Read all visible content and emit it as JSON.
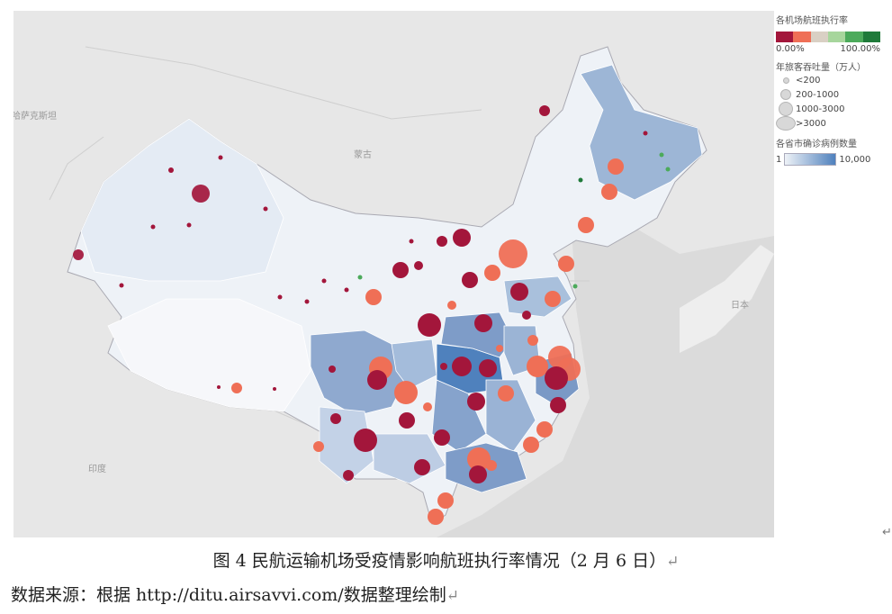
{
  "map": {
    "place_labels": [
      "蒙古",
      "哈萨克斯坦",
      "日本",
      "印度"
    ]
  },
  "legend": {
    "rate": {
      "title": "各机场航班执行率",
      "min_label": "0.00%",
      "max_label": "100.00%",
      "colors": [
        "#a3163b",
        "#ef6f56",
        "#d9d0c4",
        "#a7d69c",
        "#4caa5b",
        "#1f7a3a"
      ]
    },
    "size": {
      "title": "年旅客吞吐量（万人）",
      "items": [
        "<200",
        "200-1000",
        "1000-3000",
        ">3000"
      ]
    },
    "cases": {
      "title": "各省市确诊病例数量",
      "min_label": "1",
      "max_label": "10,000",
      "colors": [
        "#eef2f7",
        "#4f81bd"
      ]
    }
  },
  "caption": {
    "text": "图 4 民航运输机场受疫情影响航班执行率情况（2 月 6 日）",
    "return_mark": "↵"
  },
  "source": {
    "text": "数据来源：根据 http://ditu.airsavvi.com/数据整理绘制",
    "return_mark": "↵"
  },
  "edge_mark": "↵"
}
